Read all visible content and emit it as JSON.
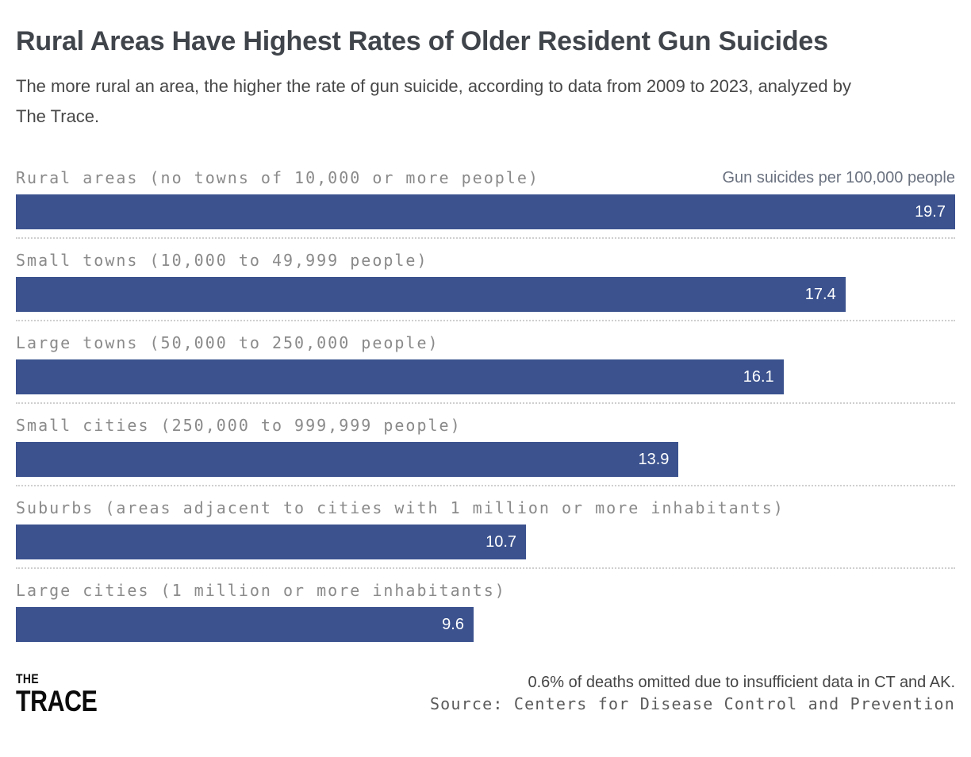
{
  "header": {
    "title": "Rural Areas Have Highest Rates of Older Resident Gun Suicides",
    "subtitle": "The more rural an area, the higher the rate of gun suicide, according to data from 2009 to 2023, analyzed by The Trace."
  },
  "chart_data": {
    "type": "bar",
    "orientation": "horizontal",
    "unit_label": "Gun suicides per 100,000 people",
    "categories": [
      "Rural areas (no towns of 10,000 or more people)",
      "Small towns (10,000 to 49,999 people)",
      "Large towns (50,000 to 250,000 people)",
      "Small cities (250,000 to 999,999 people)",
      "Suburbs (areas adjacent to cities with 1 million or more inhabitants)",
      "Large cities (1 million or more inhabitants)"
    ],
    "values": [
      19.7,
      17.4,
      16.1,
      13.9,
      10.7,
      9.6
    ],
    "max_value": 19.7,
    "bar_color": "#3b528e",
    "value_label_color": "#ffffff",
    "label_color": "#8a8a8a",
    "separator_style": "dotted",
    "legend_position": "none"
  },
  "footer": {
    "logo_line1": "THE",
    "logo_line2": "TRACE",
    "note": "0.6% of deaths omitted due to insufficient data in CT and AK.",
    "source": "Source: Centers for Disease Control and Prevention"
  }
}
